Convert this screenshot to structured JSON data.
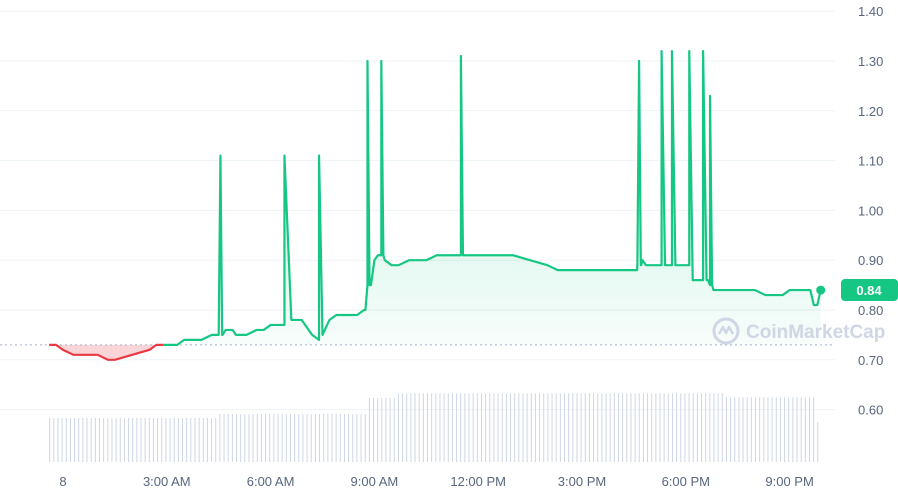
{
  "chart_data": {
    "type": "area",
    "x_tick_labels": [
      "8",
      "3:00 AM",
      "6:00 AM",
      "9:00 AM",
      "12:00 PM",
      "3:00 PM",
      "6:00 PM",
      "9:00 PM"
    ],
    "y_tick_labels": [
      "1.40",
      "1.30",
      "1.20",
      "1.10",
      "1.00",
      "0.90",
      "0.80",
      "0.70",
      "0.60"
    ],
    "ylim": [
      0.5,
      1.4
    ],
    "xlim_hours": [
      -0.4,
      22.9
    ],
    "baseline": 0.73,
    "current_price_label": "0.84",
    "watermark": "CoinMarketCap",
    "grid": true,
    "colors": {
      "up": "#16c784",
      "down": "#ea3943",
      "grid": "#eff2f5",
      "volume": "#cfd6e4",
      "tick": "#58667e"
    },
    "price_series": {
      "x_hours": [
        -0.4,
        -0.2,
        0.0,
        0.3,
        0.5,
        0.8,
        1.0,
        1.3,
        1.5,
        2.0,
        2.5,
        2.7,
        3.0,
        3.3,
        3.5,
        3.8,
        4.0,
        4.3,
        4.5,
        4.6,
        4.7,
        4.9,
        5.0,
        5.3,
        5.6,
        5.8,
        6.0,
        6.2,
        6.4,
        6.6,
        6.8,
        6.9,
        7.2,
        7.4,
        7.5,
        7.7,
        7.9,
        8.1,
        8.3,
        8.5,
        8.7,
        8.8,
        8.9,
        9.0,
        9.1,
        9.2,
        9.3,
        9.5,
        9.7,
        10.0,
        10.5,
        10.8,
        11.0,
        11.4,
        11.5,
        11.6,
        11.8,
        12.0,
        12.5,
        13.0,
        13.5,
        14.0,
        14.3,
        14.6,
        15.0,
        15.5,
        16.0,
        16.5,
        16.6,
        16.7,
        16.75,
        16.85,
        16.9,
        17.0,
        17.1,
        17.2,
        17.3,
        17.4,
        17.5,
        17.6,
        17.7,
        18.0,
        18.1,
        18.2,
        18.3,
        18.4,
        18.5,
        18.6,
        18.7,
        18.8,
        18.85,
        19.2,
        19.3,
        19.6,
        20.0,
        20.3,
        20.5,
        20.8,
        21.0,
        21.2,
        21.5,
        21.6,
        21.7,
        21.8,
        21.9
      ],
      "values": [
        0.73,
        0.73,
        0.72,
        0.71,
        0.71,
        0.71,
        0.71,
        0.7,
        0.7,
        0.71,
        0.72,
        0.73,
        0.73,
        0.73,
        0.74,
        0.74,
        0.74,
        0.75,
        0.75,
        0.75,
        0.76,
        0.76,
        0.75,
        0.75,
        0.76,
        0.76,
        0.77,
        0.77,
        0.77,
        0.78,
        0.78,
        0.78,
        0.75,
        0.74,
        0.75,
        0.78,
        0.79,
        0.79,
        0.79,
        0.79,
        0.8,
        0.85,
        0.85,
        0.9,
        0.91,
        0.91,
        0.9,
        0.89,
        0.89,
        0.9,
        0.9,
        0.91,
        0.91,
        0.91,
        0.91,
        0.91,
        0.91,
        0.91,
        0.91,
        0.91,
        0.9,
        0.89,
        0.88,
        0.88,
        0.88,
        0.88,
        0.88,
        0.88,
        0.89,
        0.89,
        0.9,
        0.89,
        0.89,
        0.89,
        0.89,
        0.89,
        0.89,
        0.89,
        0.89,
        0.89,
        0.89,
        0.89,
        0.89,
        0.86,
        0.86,
        0.86,
        0.86,
        0.86,
        0.85,
        0.84,
        0.84,
        0.84,
        0.84,
        0.84,
        0.84,
        0.83,
        0.83,
        0.83,
        0.84,
        0.84,
        0.84,
        0.84,
        0.81,
        0.81,
        0.84
      ]
    },
    "spikes": [
      {
        "x_hours": 4.55,
        "value": 1.11
      },
      {
        "x_hours": 8.8,
        "value": 1.3
      },
      {
        "x_hours": 9.2,
        "value": 1.3
      },
      {
        "x_hours": 11.5,
        "value": 1.31
      },
      {
        "x_hours": 16.65,
        "value": 1.3
      },
      {
        "x_hours": 18.7,
        "value": 1.23
      }
    ],
    "plateaus": [
      {
        "x_start_hours": 6.4,
        "x_end_hours": 7.4,
        "value": 1.11
      },
      {
        "x_start_hours": 17.3,
        "x_end_hours": 17.6,
        "value": 1.32
      },
      {
        "x_start_hours": 18.1,
        "x_end_hours": 18.5,
        "value": 1.32
      }
    ],
    "volume_series": {
      "x_hours_start": -0.4,
      "x_hours_end": 21.8,
      "relative_levels": [
        {
          "from_hours": -0.4,
          "to_hours": 4.5,
          "level": 0.55
        },
        {
          "from_hours": 4.5,
          "to_hours": 8.8,
          "level": 0.6
        },
        {
          "from_hours": 8.8,
          "to_hours": 9.6,
          "level": 0.8
        },
        {
          "from_hours": 9.6,
          "to_hours": 19.1,
          "level": 0.86
        },
        {
          "from_hours": 19.1,
          "to_hours": 21.8,
          "level": 0.81
        }
      ]
    }
  }
}
